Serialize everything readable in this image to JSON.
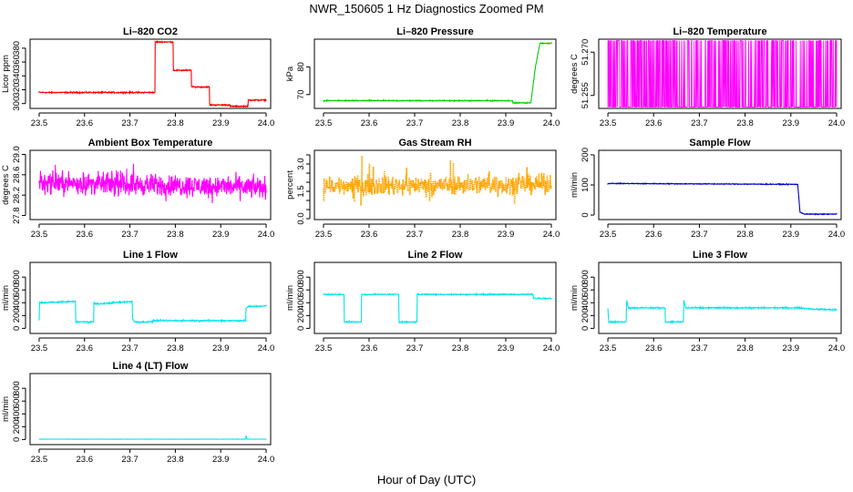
{
  "figure": {
    "title": "NWR_150605  1 Hz Diagnostics Zoomed PM",
    "xlabel": "Hour of Day (UTC)"
  },
  "chart_data": [
    {
      "id": "co2",
      "type": "line",
      "title": "Li–820 CO2",
      "ylabel": "Licor ppm",
      "color": "#ff0000",
      "xlim": [
        23.48,
        24.01
      ],
      "ylim": [
        293,
        393
      ],
      "xticks": [
        "23.5",
        "23.6",
        "23.7",
        "23.8",
        "23.9",
        "24.0"
      ],
      "yticks": [
        "300",
        "320",
        "340",
        "360",
        "380"
      ],
      "ytick_values": [
        300,
        320,
        340,
        360,
        380
      ],
      "series": [
        {
          "x": [
            23.5,
            23.755,
            23.755,
            23.795,
            23.795,
            23.835,
            23.835,
            23.875,
            23.875,
            23.92,
            23.92,
            23.96,
            23.96,
            24.0
          ],
          "values": [
            316,
            316,
            389,
            389,
            348,
            348,
            324,
            324,
            298,
            298,
            296,
            296,
            305,
            305
          ],
          "noise": 0.8
        }
      ]
    },
    {
      "id": "pressure",
      "type": "line",
      "title": "Li–820 Pressure",
      "ylabel": "kPa",
      "color": "#00cc00",
      "xlim": [
        23.48,
        24.01
      ],
      "ylim": [
        65,
        90
      ],
      "xticks": [
        "23.5",
        "23.6",
        "23.7",
        "23.8",
        "23.9",
        "24.0"
      ],
      "yticks": [
        "70",
        "80"
      ],
      "ytick_values": [
        70,
        80
      ],
      "series": [
        {
          "x": [
            23.5,
            23.915,
            23.915,
            23.94,
            23.955,
            23.965,
            23.975,
            24.0
          ],
          "values": [
            67.8,
            67.8,
            67.0,
            67.0,
            67.0,
            80,
            88.5,
            88.5
          ],
          "noise": 0.15
        }
      ]
    },
    {
      "id": "licor_temp",
      "type": "line",
      "title": "Li–820 Temperature",
      "ylabel": "degrees C",
      "color": "#ff00ff",
      "xlim": [
        23.48,
        24.01
      ],
      "ylim": [
        51.2505,
        51.2745
      ],
      "xticks": [
        "23.5",
        "23.6",
        "23.7",
        "23.8",
        "23.9",
        "24.0"
      ],
      "yticks": [
        "51.255",
        "51.270"
      ],
      "ytick_values": [
        51.255,
        51.27
      ],
      "series": [
        {
          "x": [
            23.5,
            24.0
          ],
          "values": [
            51.251,
            51.274
          ],
          "mode": "binary",
          "density": 0.35
        }
      ]
    },
    {
      "id": "box_temp",
      "type": "line",
      "title": "Ambient Box Temperature",
      "ylabel": "degrees C",
      "color": "#ff00ff",
      "xlim": [
        23.48,
        24.01
      ],
      "ylim": [
        27.72,
        29.08
      ],
      "xticks": [
        "23.5",
        "23.6",
        "23.7",
        "23.8",
        "23.9",
        "24.0"
      ],
      "yticks": [
        "27.8",
        "28.2",
        "28.6",
        "29.0"
      ],
      "ytick_values": [
        27.8,
        28.2,
        28.6,
        29.0
      ],
      "series": [
        {
          "x": [
            23.5,
            24.0
          ],
          "values": [
            28.45,
            28.35
          ],
          "noise": 0.18,
          "spikes": 0.25
        }
      ]
    },
    {
      "id": "rh",
      "type": "line",
      "title": "Gas Stream RH",
      "ylabel": "percent",
      "color": "#ffa500",
      "xlim": [
        23.48,
        24.01
      ],
      "ylim": [
        -0.05,
        3.75
      ],
      "xticks": [
        "23.5",
        "23.6",
        "23.7",
        "23.8",
        "23.9",
        "24.0"
      ],
      "yticks": [
        "0.0",
        "1.5",
        "3.0"
      ],
      "ytick_values": [
        0.0,
        1.5,
        3.0
      ],
      "minor_yticks": [
        0.5,
        1.0,
        2.0,
        2.5,
        3.5
      ],
      "series": [
        {
          "x": [
            23.5,
            24.0
          ],
          "values": [
            1.8,
            1.9
          ],
          "noise": 0.45,
          "spikes": 1.2,
          "dotted": true
        }
      ]
    },
    {
      "id": "sample_flow",
      "type": "line",
      "title": "Sample Flow",
      "ylabel": "ml/min",
      "color": "#0000cc",
      "xlim": [
        23.48,
        24.01
      ],
      "ylim": [
        -15,
        215
      ],
      "xticks": [
        "23.5",
        "23.6",
        "23.7",
        "23.8",
        "23.9",
        "24.0"
      ],
      "yticks": [
        "0",
        "100",
        "200"
      ],
      "ytick_values": [
        0,
        100,
        200
      ],
      "series": [
        {
          "x": [
            23.5,
            23.915,
            23.92,
            23.93,
            24.0
          ],
          "values": [
            105,
            102,
            10,
            3,
            3
          ],
          "noise": 1.2
        }
      ]
    },
    {
      "id": "line1",
      "type": "line",
      "title": "Line 1 Flow",
      "ylabel": "ml/min",
      "color": "#00e5ee",
      "xlim": [
        23.48,
        24.01
      ],
      "ylim": [
        -80,
        1030
      ],
      "xticks": [
        "23.5",
        "23.6",
        "23.7",
        "23.8",
        "23.9",
        "24.0"
      ],
      "yticks": [
        "0",
        "200",
        "400",
        "600",
        "800"
      ],
      "ytick_values": [
        0,
        200,
        400,
        600,
        800
      ],
      "series": [
        {
          "x": [
            23.5,
            23.501,
            23.502,
            23.58,
            23.58,
            23.62,
            23.62,
            23.625,
            23.705,
            23.705,
            23.71,
            23.75,
            23.75,
            23.955,
            23.955,
            23.96,
            24.0
          ],
          "values": [
            130,
            420,
            400,
            420,
            100,
            100,
            410,
            380,
            420,
            160,
            100,
            100,
            120,
            120,
            300,
            340,
            350
          ],
          "noise": 10
        }
      ]
    },
    {
      "id": "line2",
      "type": "line",
      "title": "Line 2 Flow",
      "ylabel": "ml/min",
      "color": "#00e5ee",
      "xlim": [
        23.48,
        24.01
      ],
      "ylim": [
        -80,
        1030
      ],
      "xticks": [
        "23.5",
        "23.6",
        "23.7",
        "23.8",
        "23.9",
        "24.0"
      ],
      "yticks": [
        "0",
        "200",
        "400",
        "600",
        "800"
      ],
      "ytick_values": [
        0,
        200,
        400,
        600,
        800
      ],
      "series": [
        {
          "x": [
            23.5,
            23.545,
            23.545,
            23.583,
            23.583,
            23.665,
            23.665,
            23.705,
            23.705,
            23.96,
            23.96,
            24.0
          ],
          "values": [
            530,
            530,
            100,
            100,
            530,
            530,
            100,
            100,
            530,
            530,
            470,
            470
          ],
          "noise": 8
        }
      ]
    },
    {
      "id": "line3",
      "type": "line",
      "title": "Line 3 Flow",
      "ylabel": "ml/min",
      "color": "#00e5ee",
      "xlim": [
        23.48,
        24.01
      ],
      "ylim": [
        -80,
        1030
      ],
      "xticks": [
        "23.5",
        "23.6",
        "23.7",
        "23.8",
        "23.9",
        "24.0"
      ],
      "yticks": [
        "0",
        "200",
        "400",
        "600",
        "800"
      ],
      "ytick_values": [
        0,
        200,
        400,
        600,
        800
      ],
      "series": [
        {
          "x": [
            23.5,
            23.502,
            23.54,
            23.541,
            23.545,
            23.625,
            23.625,
            23.665,
            23.666,
            23.67,
            23.92,
            23.95,
            24.0
          ],
          "values": [
            300,
            100,
            100,
            440,
            320,
            320,
            100,
            100,
            440,
            320,
            320,
            300,
            290
          ],
          "noise": 10
        }
      ]
    },
    {
      "id": "line4",
      "type": "line",
      "title": "Line 4 (LT) Flow",
      "ylabel": "ml/min",
      "color": "#00e5ee",
      "xlim": [
        23.48,
        24.01
      ],
      "ylim": [
        -80,
        1030
      ],
      "xticks": [
        "23.5",
        "23.6",
        "23.7",
        "23.8",
        "23.9",
        "24.0"
      ],
      "yticks": [
        "0",
        "200",
        "400",
        "600",
        "800"
      ],
      "ytick_values": [
        0,
        200,
        400,
        600,
        800
      ],
      "series": [
        {
          "x": [
            23.5,
            23.955,
            23.956,
            23.958,
            23.96,
            24.0
          ],
          "values": [
            5,
            5,
            60,
            5,
            5,
            5
          ],
          "noise": 1.5
        }
      ]
    }
  ]
}
